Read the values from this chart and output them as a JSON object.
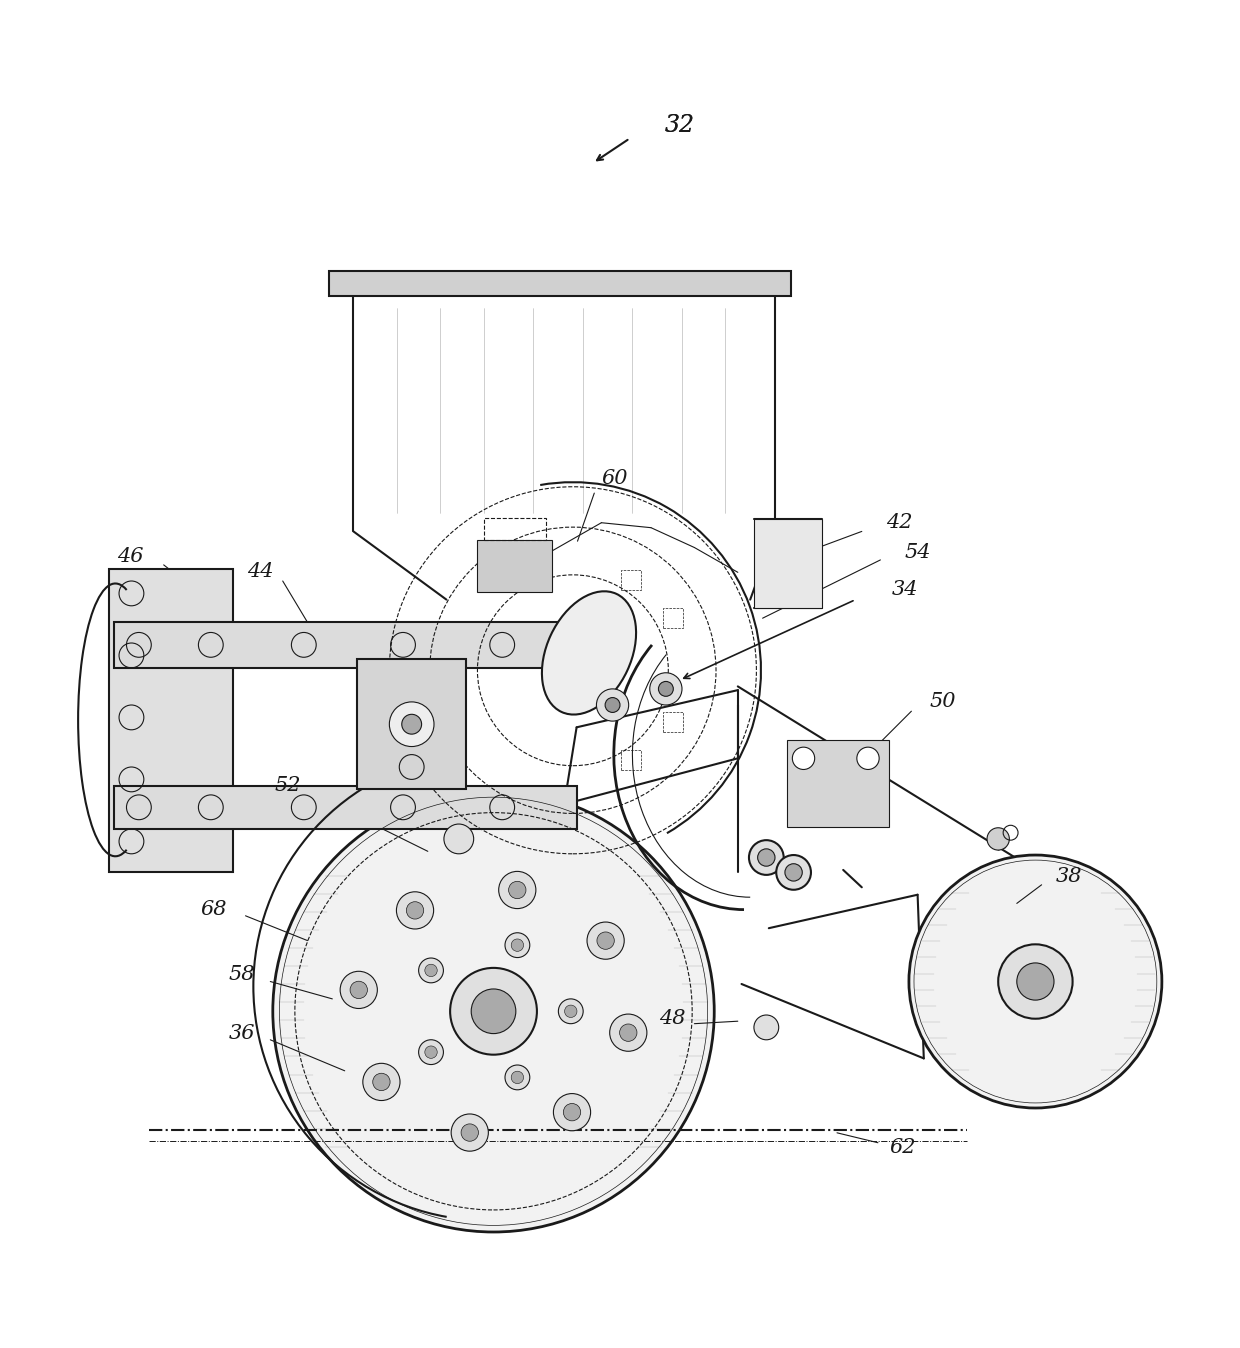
{
  "bg_color": "#ffffff",
  "line_color": "#1a1a1a",
  "label_color": "#1a1a1a",
  "fig_width": 12.4,
  "fig_height": 13.48
}
